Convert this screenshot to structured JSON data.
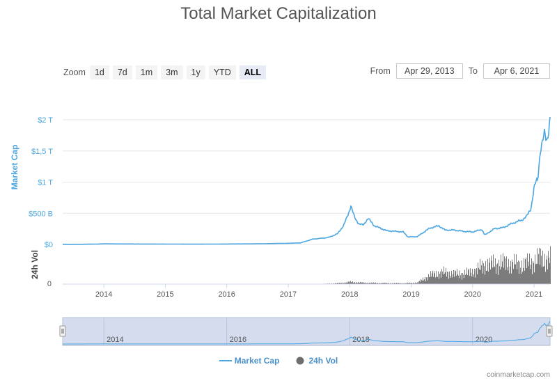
{
  "title": "Total Market Capitalization",
  "zoom": {
    "label": "Zoom",
    "buttons": [
      "1d",
      "7d",
      "1m",
      "3m",
      "1y",
      "YTD",
      "ALL"
    ],
    "active": "ALL"
  },
  "range": {
    "from_label": "From",
    "from_value": "Apr 29, 2013",
    "to_label": "To",
    "to_value": "Apr 6, 2021"
  },
  "legend": {
    "market_cap": "Market Cap",
    "volume": "24h Vol"
  },
  "credit": "coinmarketcap.com",
  "colors": {
    "market_cap": "#4ba6e2",
    "volume": "#6e6e6e",
    "navigator_fill": "#ccd6eb"
  },
  "chart_data": {
    "type": "line",
    "ylabel": "Market Cap",
    "y2label": "24h Vol",
    "x_ticks": [
      "2014",
      "2015",
      "2016",
      "2017",
      "2018",
      "2019",
      "2020",
      "2021"
    ],
    "navigator_ticks": [
      "2014",
      "2016",
      "2018",
      "2020"
    ],
    "y_ticks": [
      "$0",
      "$500 B",
      "$1 T",
      "$1,5 T",
      "$2 T"
    ],
    "y_tick_values": [
      0,
      500,
      1000,
      1500,
      2000
    ],
    "y2_ticks": [
      "0"
    ],
    "y_unit": "billion USD",
    "ylim": [
      0,
      2000
    ],
    "xlim": [
      2013.33,
      2021.26
    ],
    "series": [
      {
        "name": "Market Cap",
        "x": [
          2013.33,
          2013.6,
          2013.9,
          2014.0,
          2014.2,
          2014.6,
          2015.0,
          2015.5,
          2016.0,
          2016.5,
          2017.0,
          2017.2,
          2017.4,
          2017.55,
          2017.65,
          2017.8,
          2017.9,
          2017.97,
          2018.02,
          2018.08,
          2018.15,
          2018.22,
          2018.3,
          2018.4,
          2018.5,
          2018.6,
          2018.75,
          2018.87,
          2018.95,
          2019.1,
          2019.3,
          2019.45,
          2019.55,
          2019.7,
          2019.85,
          2020.0,
          2020.15,
          2020.2,
          2020.35,
          2020.5,
          2020.65,
          2020.8,
          2020.88,
          2020.95,
          2021.0,
          2021.03,
          2021.06,
          2021.1,
          2021.13,
          2021.17,
          2021.21,
          2021.24,
          2021.26
        ],
        "values": [
          1,
          2,
          6,
          10,
          8,
          7,
          6,
          4,
          7,
          10,
          18,
          25,
          85,
          100,
          110,
          170,
          300,
          470,
          620,
          430,
          330,
          310,
          420,
          300,
          260,
          220,
          210,
          200,
          120,
          125,
          260,
          300,
          230,
          230,
          210,
          200,
          240,
          150,
          250,
          270,
          340,
          390,
          450,
          580,
          900,
          1000,
          1050,
          1500,
          1600,
          1780,
          1680,
          1850,
          2000
        ]
      },
      {
        "name": "24h Vol",
        "x": [
          2013.33,
          2016.5,
          2017.0,
          2017.4,
          2017.6,
          2017.85,
          2018.0,
          2018.2,
          2018.5,
          2018.9,
          2019.1,
          2019.3,
          2019.5,
          2019.8,
          2020.0,
          2020.2,
          2020.5,
          2020.8,
          2021.0,
          2021.1,
          2021.26
        ],
        "values": [
          0,
          0,
          0.2,
          0.5,
          1,
          3,
          6,
          4,
          3,
          2.5,
          4,
          25,
          33,
          28,
          35,
          55,
          60,
          55,
          65,
          75,
          70
        ]
      }
    ],
    "grid": true,
    "legend_position": "bottom-center"
  }
}
